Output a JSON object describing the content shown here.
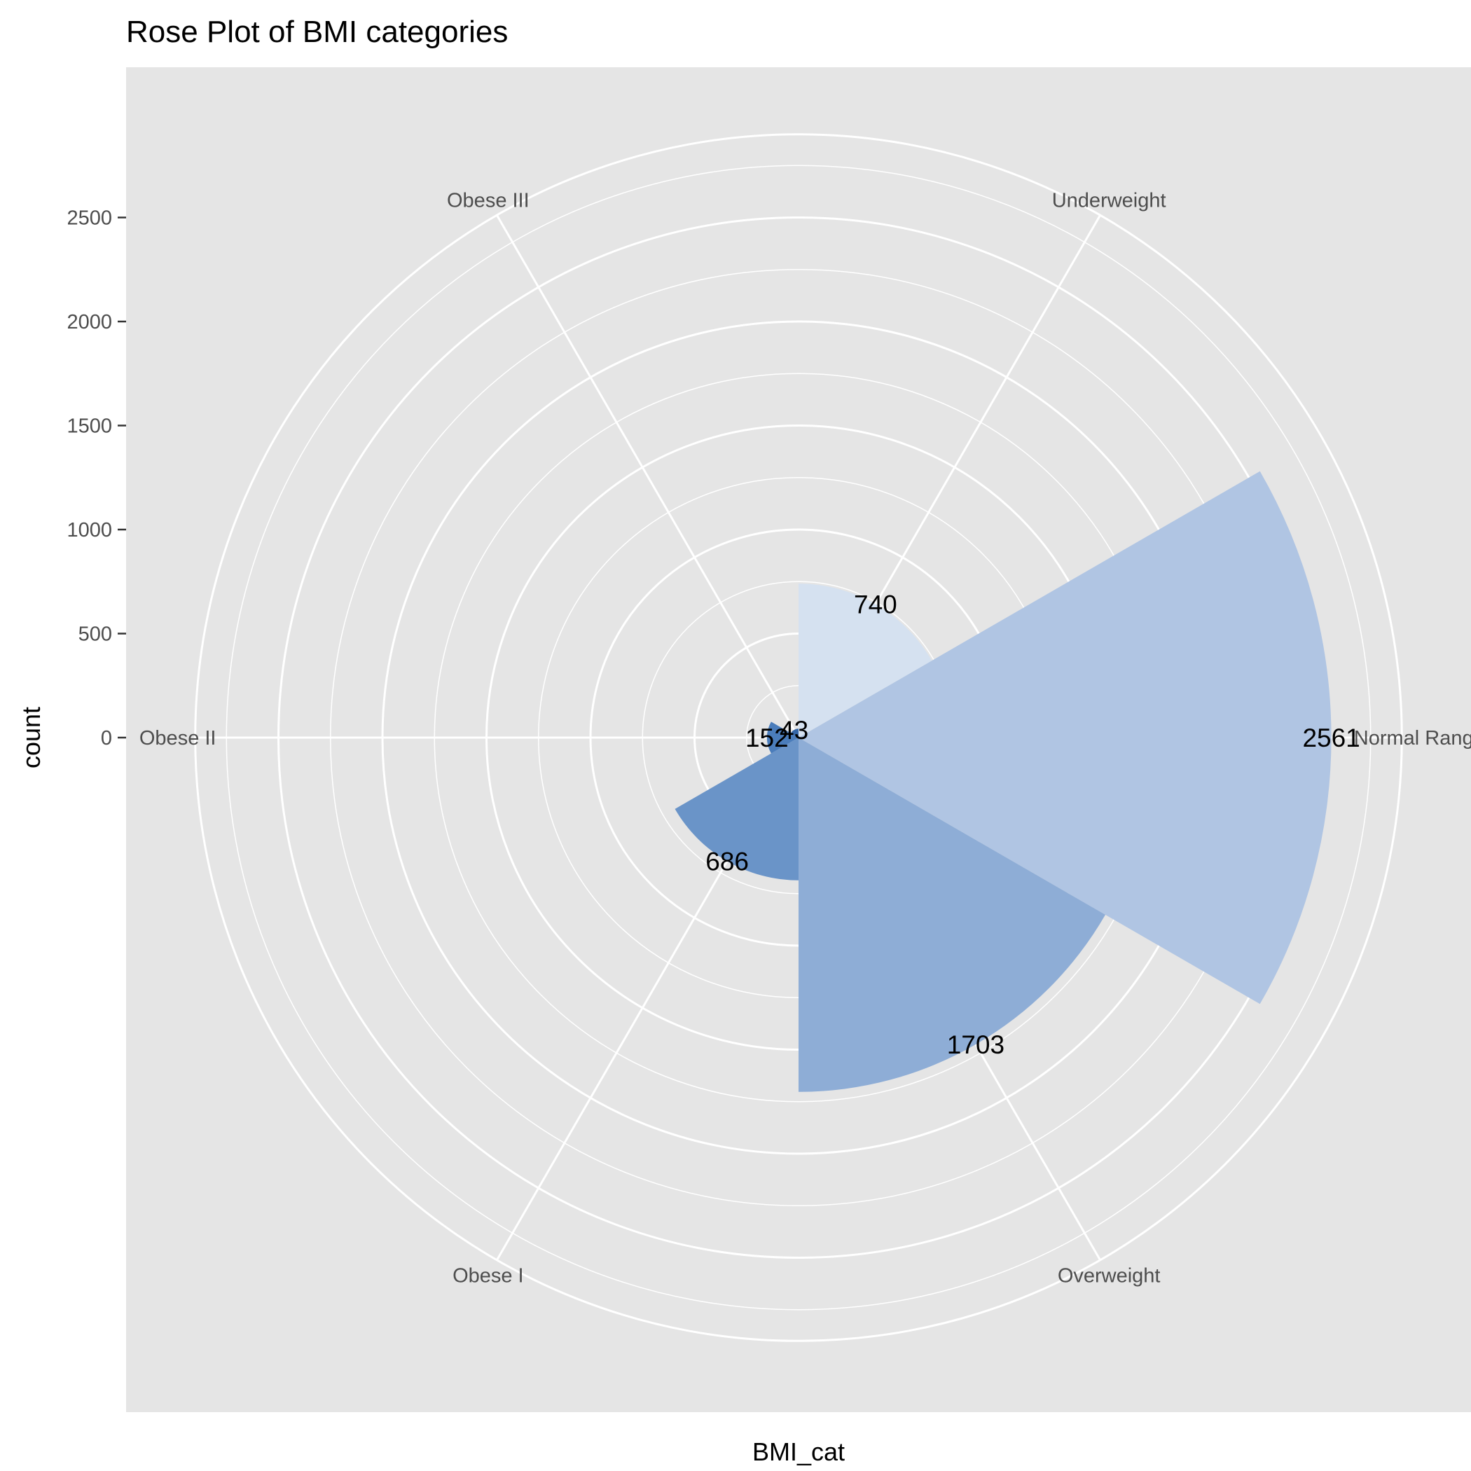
{
  "chart_data": {
    "type": "bar",
    "coord": "polar",
    "title": "Rose Plot of BMI categories",
    "xlabel": "BMI_cat",
    "ylabel": "count",
    "categories": [
      "Normal Range",
      "Overweight",
      "Obese I",
      "Obese II",
      "Obese III",
      "Underweight"
    ],
    "values": [
      2561,
      1703,
      686,
      152,
      43,
      740
    ],
    "fill_colors": [
      "#b0c5e3",
      "#8eadd6",
      "#6a94c8",
      "#4b7dbb",
      "#3567a8",
      "#d5e1f0"
    ],
    "yticks": [
      0,
      500,
      1000,
      1500,
      2000,
      2500
    ],
    "rlim": [
      0,
      2900
    ],
    "grid": true,
    "panel_background": "#e5e5e5",
    "grid_color": "#ffffff"
  }
}
